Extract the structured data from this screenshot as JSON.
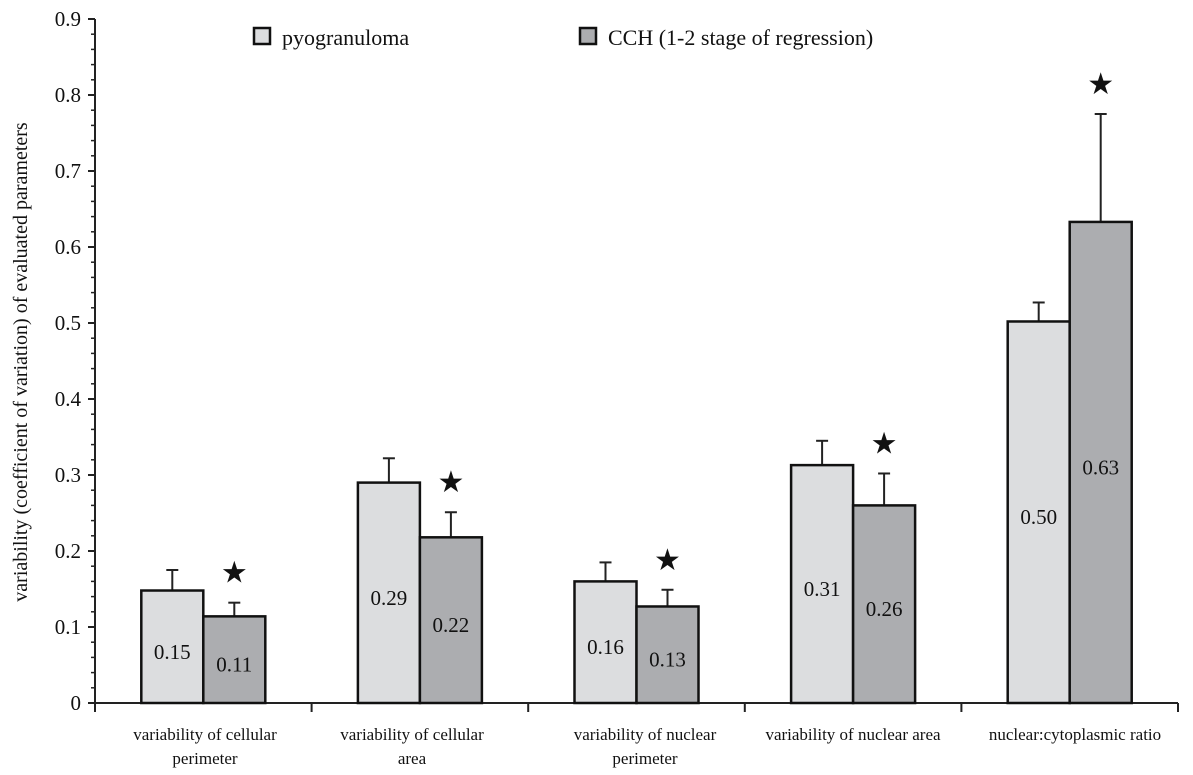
{
  "chart_data": {
    "type": "bar",
    "ylabel": "variability (coefficient of variation) of evaluated parameters",
    "xlabel": "",
    "ylim": [
      0,
      0.9
    ],
    "yticks": [
      "0",
      "0.1",
      "0.2",
      "0.3",
      "0.4",
      "0.5",
      "0.6",
      "0.7",
      "0.8",
      "0.9"
    ],
    "categories": [
      [
        "variability of cellular",
        "perimeter"
      ],
      [
        "variability of cellular",
        "area"
      ],
      [
        "variability of nuclear",
        "perimeter"
      ],
      [
        "variability of nuclear area"
      ],
      [
        "nuclear:cytoplasmic ratio"
      ]
    ],
    "legend_position": "top",
    "series": [
      {
        "name": "pyogranuloma",
        "color": "#dcdddf",
        "values": [
          0.148,
          0.29,
          0.16,
          0.313,
          0.502
        ],
        "error": [
          0.027,
          0.032,
          0.025,
          0.032,
          0.025
        ],
        "labels": [
          "0.15",
          "0.29",
          "0.16",
          "0.31",
          "0.50"
        ]
      },
      {
        "name": "CCH (1-2 stage of regression)",
        "color": "#acadb0",
        "values": [
          0.114,
          0.218,
          0.127,
          0.26,
          0.633
        ],
        "error": [
          0.018,
          0.033,
          0.022,
          0.042,
          0.142
        ],
        "labels": [
          "0.11",
          "0.22",
          "0.13",
          "0.26",
          "0.63"
        ]
      }
    ],
    "significance_marker": "★",
    "significant": [
      true,
      true,
      true,
      true,
      true
    ]
  }
}
